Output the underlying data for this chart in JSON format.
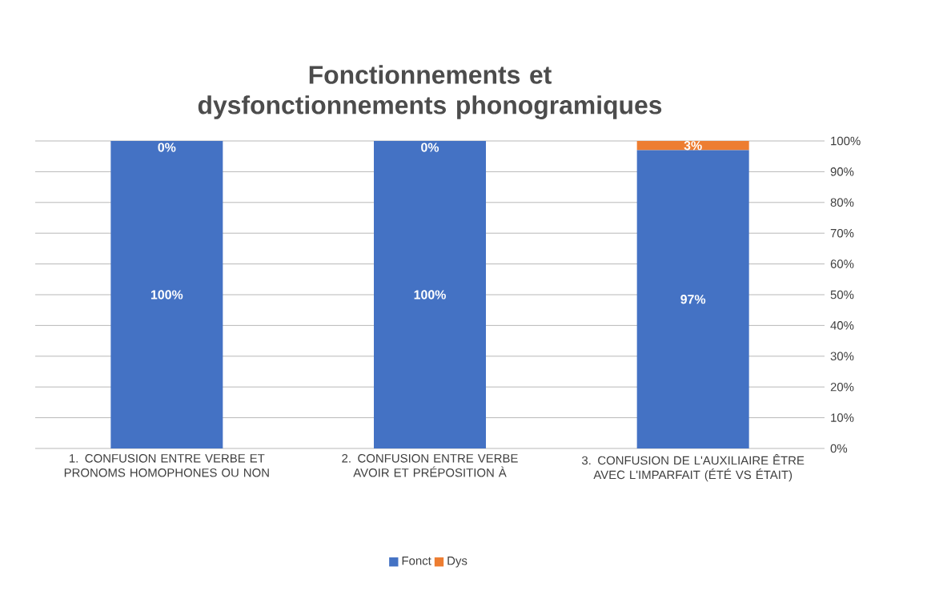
{
  "chart_data": {
    "type": "bar",
    "stacked": true,
    "title": "Fonctionnements et dysfonctionnements phonogramiques",
    "categories": [
      "1. CONFUSION ENTRE VERBE ET PRONOMS HOMOPHONES OU NON",
      "2. CONFUSION ENTRE VERBE AVOIR ET PRÉPOSITION À",
      "3. CONFUSION DE L'AUXILIAIRE ÊTRE AVEC L'IMPARFAIT (ÉTÉ VS ÉTAIT)"
    ],
    "series": [
      {
        "name": "Fonct",
        "color": "#4472c4",
        "values": [
          100,
          100,
          97
        ],
        "value_labels": [
          "100%",
          "100%",
          "97%"
        ]
      },
      {
        "name": "Dys",
        "color": "#ed7d31",
        "values": [
          0,
          0,
          3
        ],
        "value_labels": [
          "0%",
          "0%",
          "3%"
        ]
      }
    ],
    "ylim": [
      0,
      100
    ],
    "yticks": [
      {
        "value": 0,
        "label": "0%"
      },
      {
        "value": 10,
        "label": "10%"
      },
      {
        "value": 20,
        "label": "20%"
      },
      {
        "value": 30,
        "label": "30%"
      },
      {
        "value": 40,
        "label": "40%"
      },
      {
        "value": 50,
        "label": "50%"
      },
      {
        "value": 60,
        "label": "60%"
      },
      {
        "value": 70,
        "label": "70%"
      },
      {
        "value": 80,
        "label": "80%"
      },
      {
        "value": 90,
        "label": "90%"
      },
      {
        "value": 100,
        "label": "100%"
      }
    ],
    "grid": "y",
    "legend": "bottom"
  }
}
